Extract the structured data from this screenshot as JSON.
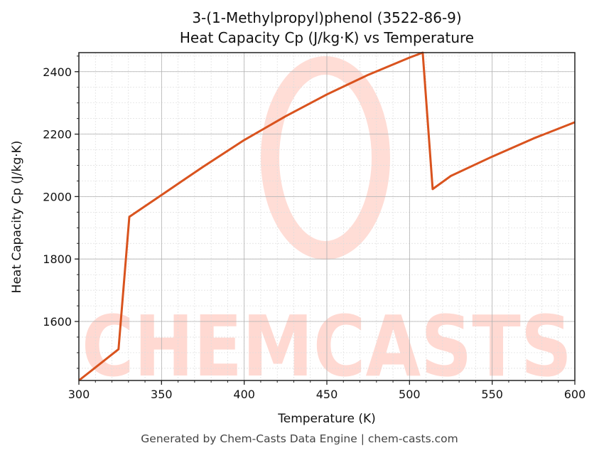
{
  "title": {
    "line1": "3-(1-Methylpropyl)phenol (3522-86-9)",
    "line2": "Heat Capacity Cp (J/kg·K) vs Temperature"
  },
  "footer": "Generated by Chem-Casts Data Engine | chem-casts.com",
  "watermark": "CHEMCASTS",
  "colors": {
    "line": "#d9531e",
    "watermark": "#ffd9d2",
    "grid_major": "#b0b0b0",
    "grid_minor": "#dddddd",
    "axis": "#222222"
  },
  "chart_data": {
    "type": "line",
    "title": "3-(1-Methylpropyl)phenol (3522-86-9)\nHeat Capacity Cp (J/kg·K) vs Temperature",
    "xlabel": "Temperature (K)",
    "ylabel": "Heat Capacity Cp (J/kg·K)",
    "xlim": [
      300,
      600
    ],
    "ylim": [
      1411,
      2461
    ],
    "xticks": [
      300,
      350,
      400,
      450,
      500,
      550,
      600
    ],
    "yticks": [
      1600,
      1800,
      2000,
      2200,
      2400
    ],
    "grid": true,
    "legend": null,
    "series": [
      {
        "name": "Cp",
        "x": [
          300,
          324,
          330.5,
          350,
          375,
          400,
          425,
          450,
          475,
          500,
          508,
          514,
          525,
          550,
          575,
          600
        ],
        "y": [
          1411,
          1511,
          1935,
          2005,
          2095,
          2181,
          2257,
          2327,
          2390,
          2445,
          2461,
          2024,
          2066,
          2128,
          2186,
          2238
        ]
      }
    ]
  }
}
